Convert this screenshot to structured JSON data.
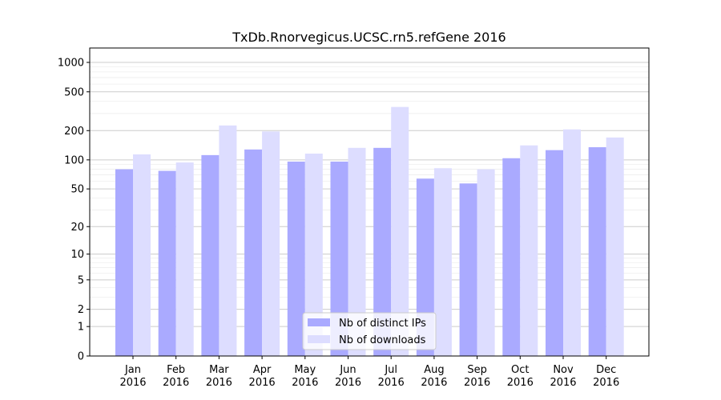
{
  "chart_data": {
    "type": "bar",
    "title": "TxDb.Rnorvegicus.UCSC.rn5.refGene 2016",
    "xlabel": "",
    "ylabel": "",
    "yscale": "log1p",
    "ylim": [
      0,
      1300
    ],
    "yticks": [
      0,
      1,
      2,
      5,
      10,
      20,
      50,
      100,
      200,
      500,
      1000
    ],
    "categories": [
      "Jan\n2016",
      "Feb\n2016",
      "Mar\n2016",
      "Apr\n2016",
      "May\n2016",
      "Jun\n2016",
      "Jul\n2016",
      "Aug\n2016",
      "Sep\n2016",
      "Oct\n2016",
      "Nov\n2016",
      "Dec\n2016"
    ],
    "series": [
      {
        "name": "Nb of distinct IPs",
        "color": "#aaaaff",
        "values": [
          80,
          77,
          112,
          128,
          96,
          96,
          133,
          64,
          57,
          104,
          126,
          135
        ]
      },
      {
        "name": "Nb of downloads",
        "color": "#ddddff",
        "values": [
          114,
          94,
          226,
          196,
          116,
          133,
          350,
          82,
          80,
          141,
          206,
          170
        ]
      }
    ],
    "grid": true,
    "legend_position": "lower-center"
  }
}
